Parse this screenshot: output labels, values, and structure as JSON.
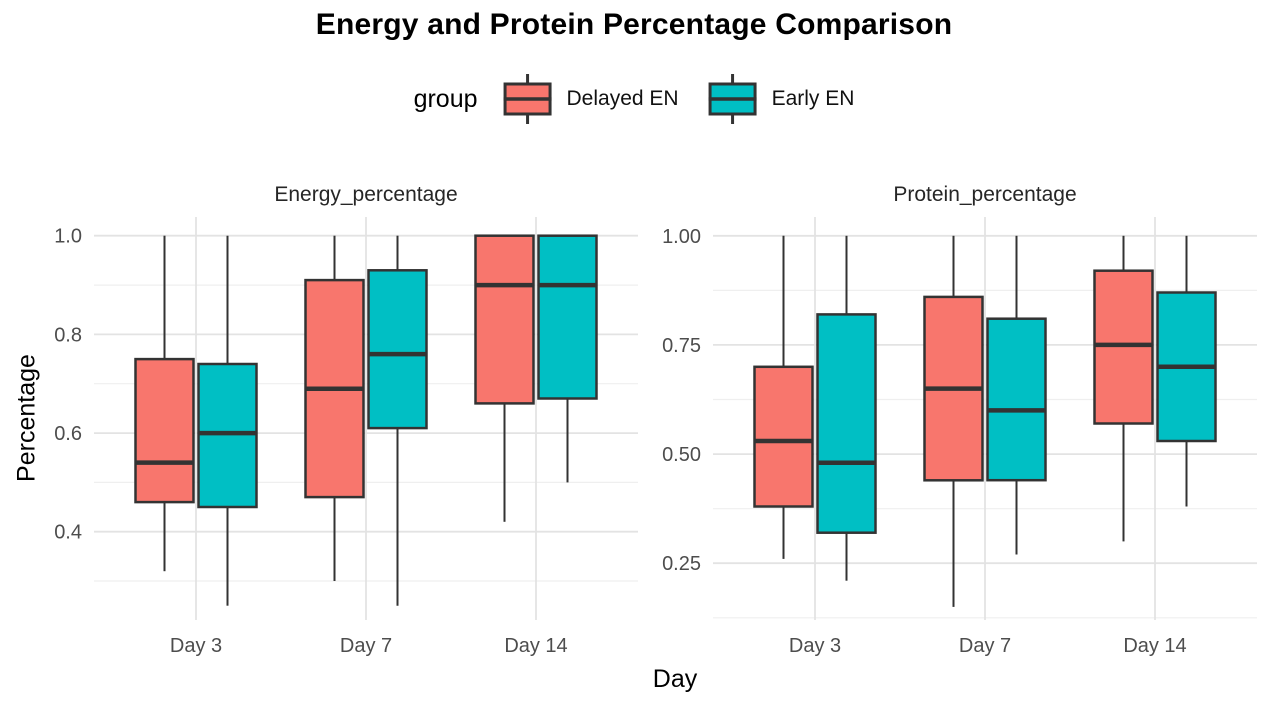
{
  "chart_data": {
    "type": "boxplot",
    "title": "Energy and Protein Percentage Comparison",
    "xlabel": "Day",
    "ylabel": "Percentage",
    "categories": [
      "Day 3",
      "Day 7",
      "Day 14"
    ],
    "grid": true,
    "legend": {
      "title": "group",
      "position": "top",
      "entries": [
        {
          "label": "Delayed EN",
          "color": "#F8766D"
        },
        {
          "label": "Early EN",
          "color": "#00BFC4"
        }
      ]
    },
    "panels": [
      {
        "facet_label": "Energy_percentage",
        "ylim": [
          0.221,
          1.038
        ],
        "yticks": [
          0.4,
          0.6,
          0.8,
          1.0
        ],
        "ytick_labels": [
          "0.4",
          "0.6",
          "0.8",
          "1.0"
        ],
        "yminor": [
          0.3,
          0.5,
          0.7,
          0.9
        ],
        "series": [
          {
            "name": "Delayed EN",
            "boxes": [
              {
                "category": "Day 3",
                "whisker_low": 0.32,
                "q1": 0.46,
                "median": 0.54,
                "q3": 0.75,
                "whisker_high": 1.0
              },
              {
                "category": "Day 7",
                "whisker_low": 0.3,
                "q1": 0.47,
                "median": 0.69,
                "q3": 0.91,
                "whisker_high": 1.0
              },
              {
                "category": "Day 14",
                "whisker_low": 0.42,
                "q1": 0.66,
                "median": 0.9,
                "q3": 1.0,
                "whisker_high": 1.0
              }
            ]
          },
          {
            "name": "Early EN",
            "boxes": [
              {
                "category": "Day 3",
                "whisker_low": 0.25,
                "q1": 0.45,
                "median": 0.6,
                "q3": 0.74,
                "whisker_high": 1.0
              },
              {
                "category": "Day 7",
                "whisker_low": 0.25,
                "q1": 0.61,
                "median": 0.76,
                "q3": 0.93,
                "whisker_high": 1.0
              },
              {
                "category": "Day 14",
                "whisker_low": 0.5,
                "q1": 0.67,
                "median": 0.9,
                "q3": 1.0,
                "whisker_high": 1.0
              }
            ]
          }
        ]
      },
      {
        "facet_label": "Protein_percentage",
        "ylim": [
          0.12,
          1.043
        ],
        "yticks": [
          0.25,
          0.5,
          0.75,
          1.0
        ],
        "ytick_labels": [
          "0.25",
          "0.50",
          "0.75",
          "1.00"
        ],
        "yminor": [
          0.125,
          0.375,
          0.625,
          0.875
        ],
        "series": [
          {
            "name": "Delayed EN",
            "boxes": [
              {
                "category": "Day 3",
                "whisker_low": 0.26,
                "q1": 0.38,
                "median": 0.53,
                "q3": 0.7,
                "whisker_high": 1.0
              },
              {
                "category": "Day 7",
                "whisker_low": 0.15,
                "q1": 0.44,
                "median": 0.65,
                "q3": 0.86,
                "whisker_high": 1.0
              },
              {
                "category": "Day 14",
                "whisker_low": 0.3,
                "q1": 0.57,
                "median": 0.75,
                "q3": 0.92,
                "whisker_high": 1.0
              }
            ]
          },
          {
            "name": "Early EN",
            "boxes": [
              {
                "category": "Day 3",
                "whisker_low": 0.21,
                "q1": 0.32,
                "median": 0.48,
                "q3": 0.82,
                "whisker_high": 1.0
              },
              {
                "category": "Day 7",
                "whisker_low": 0.27,
                "q1": 0.44,
                "median": 0.6,
                "q3": 0.81,
                "whisker_high": 1.0
              },
              {
                "category": "Day 14",
                "whisker_low": 0.38,
                "q1": 0.53,
                "median": 0.7,
                "q3": 0.87,
                "whisker_high": 1.0
              }
            ]
          }
        ]
      }
    ],
    "colors": {
      "box_outline": "#333333",
      "grid_major": "#E3E3E3",
      "grid_minor": "#EFEFEF",
      "tick_label": "#4D4D4D",
      "facet_label": "#262626",
      "text": "#000000"
    }
  }
}
